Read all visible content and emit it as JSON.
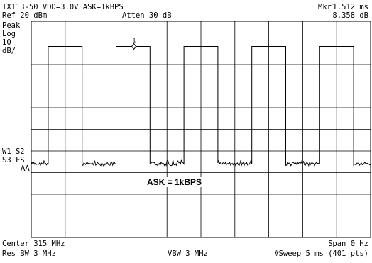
{
  "header": {
    "title_line": "TX113-50 VDD=3.0V ASK=1kBPS",
    "ref_level": "Ref 20 dBm",
    "attenuation": "Atten 30 dB",
    "marker_label": "Mkr1",
    "marker_time": "1.512 ms",
    "marker_level": "8.358 dB"
  },
  "left_panel": {
    "line1": "Peak",
    "line2": "Log",
    "line3": "10",
    "line4": "dB/",
    "line5": "W1 S2",
    "line6": "S3 FS",
    "line7": "AA"
  },
  "annotation": "ASK = 1kBPS",
  "marker_number": "1",
  "footer": {
    "center": "Center 315 MHz",
    "span": "Span 0 Hz",
    "res_bw": "Res BW 3 MHz",
    "vbw": "VBW 3 MHz",
    "sweep": "#Sweep 5 ms (401 pts)"
  },
  "chart_data": {
    "type": "line",
    "x_unit": "ms",
    "y_unit": "dBm",
    "xlim": [
      0,
      5
    ],
    "ylim": [
      -80,
      20
    ],
    "grid": true,
    "high_level": 8.358,
    "low_level": -46,
    "pulses_ms": [
      [
        0.25,
        0.75
      ],
      [
        1.25,
        1.75
      ],
      [
        2.25,
        2.75
      ],
      [
        3.25,
        3.75
      ],
      [
        4.25,
        4.75
      ]
    ],
    "marker": {
      "x": 1.512,
      "y": 8.358
    }
  }
}
